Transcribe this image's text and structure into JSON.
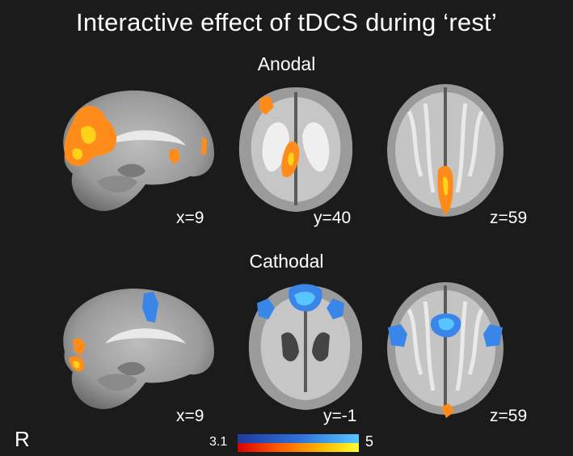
{
  "title": "Interactive effect of tDCS during ‘rest’",
  "sections": {
    "anodal": {
      "label": "Anodal",
      "coords": [
        "x=9",
        "y=40",
        "z=59"
      ]
    },
    "cathodal": {
      "label": "Cathodal",
      "coords": [
        "x=9",
        "y=-1",
        "z=59"
      ]
    }
  },
  "orientation_label": "R",
  "colorbar": {
    "min": "3.1",
    "max": "5",
    "colors": {
      "positive": [
        "#d90000",
        "#ff5a00",
        "#ffb000",
        "#ffff30"
      ],
      "negative": [
        "#1f3a9e",
        "#2f6fd9",
        "#55c8ff"
      ]
    }
  },
  "icons": [
    "sagittal-brain-slice",
    "coronal-brain-slice",
    "axial-brain-slice"
  ]
}
